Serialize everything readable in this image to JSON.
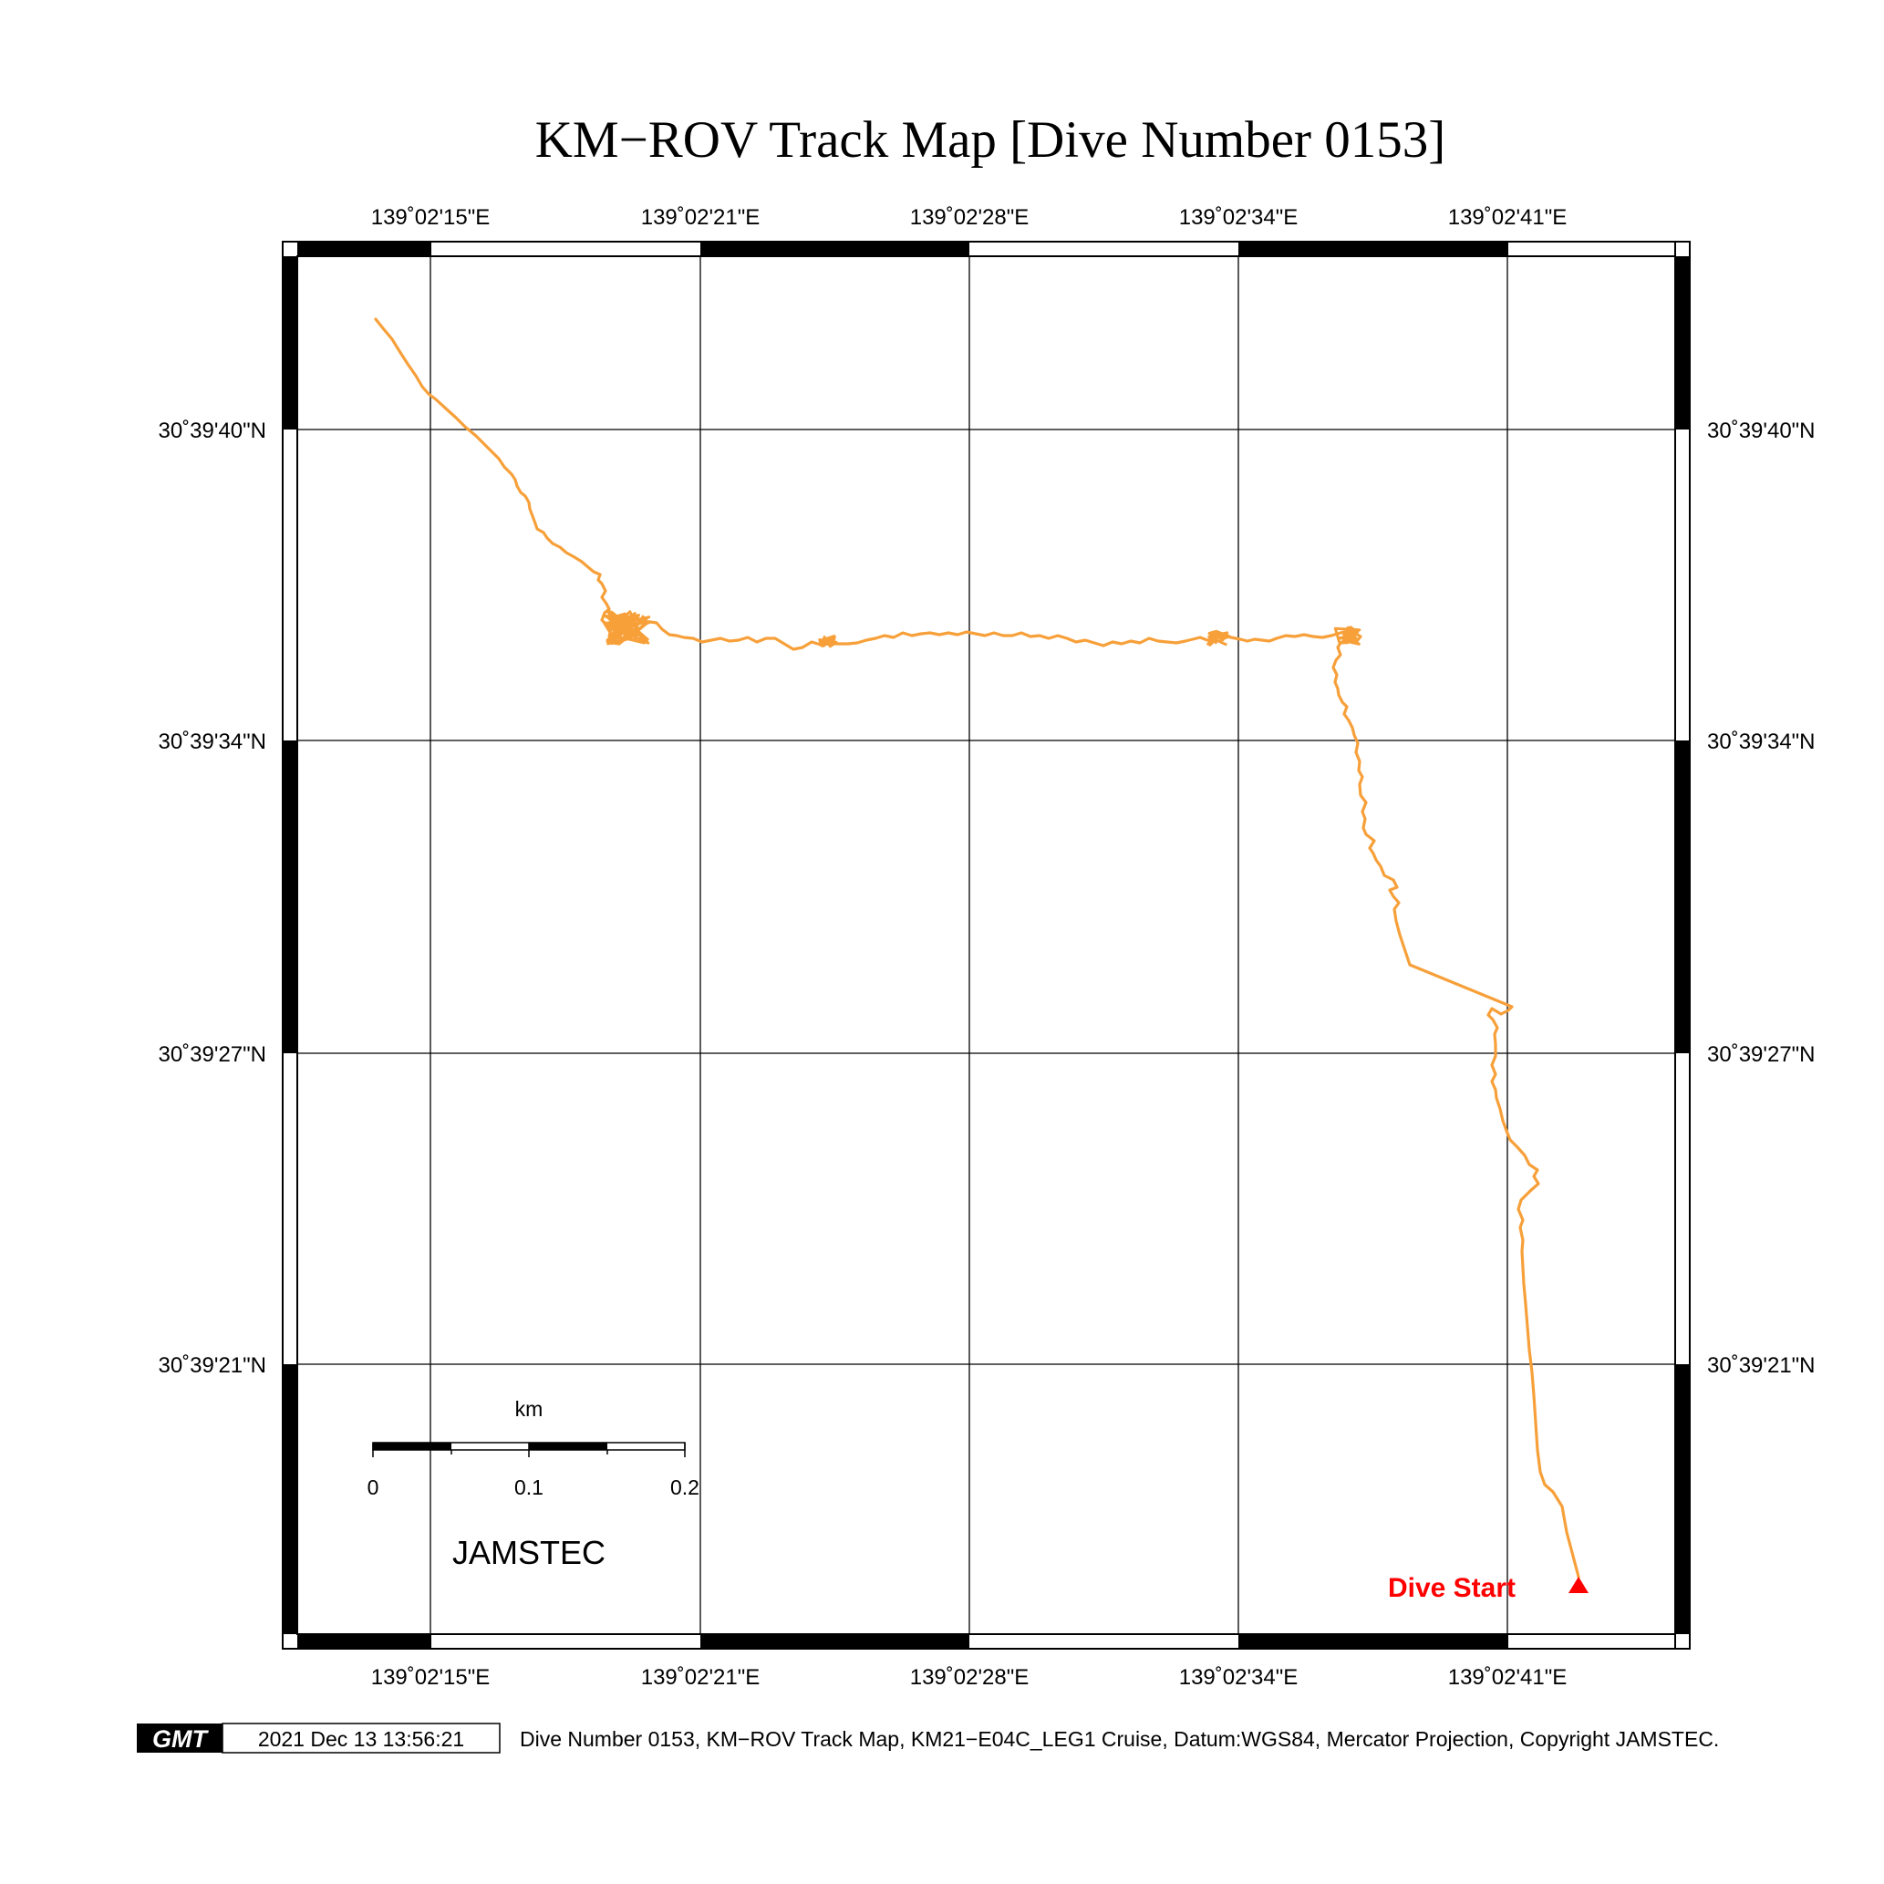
{
  "title": "KM−ROV Track Map [Dive Number 0153]",
  "map": {
    "lon_labels": [
      "139˚02'15\"E",
      "139˚02'21\"E",
      "139˚02'28\"E",
      "139˚02'34\"E",
      "139˚02'41\"E"
    ],
    "lat_labels": [
      "30˚39'40\"N",
      "30˚39'34\"N",
      "30˚39'27\"N",
      "30˚39'21\"N"
    ],
    "track_color": "#f7a03a",
    "marker_color": "#ff0000",
    "start_label": "Dive Start",
    "start_label_color": "#ff0000",
    "track_direction": "From the Dive Start marker near the bottom-right, the track runs north along the east side, then west across the middle, then north-west to the top-left end."
  },
  "scale_bar": {
    "unit": "km",
    "ticks": [
      "0",
      "0.1",
      "0.2"
    ]
  },
  "watermark": "JAMSTEC",
  "footer": {
    "logo_text": "GMT",
    "timestamp": "2021 Dec 13 13:56:21",
    "caption": "Dive Number 0153, KM−ROV Track Map, KM21−E04C_LEG1 Cruise, Datum:WGS84, Mercator Projection, Copyright JAMSTEC."
  }
}
